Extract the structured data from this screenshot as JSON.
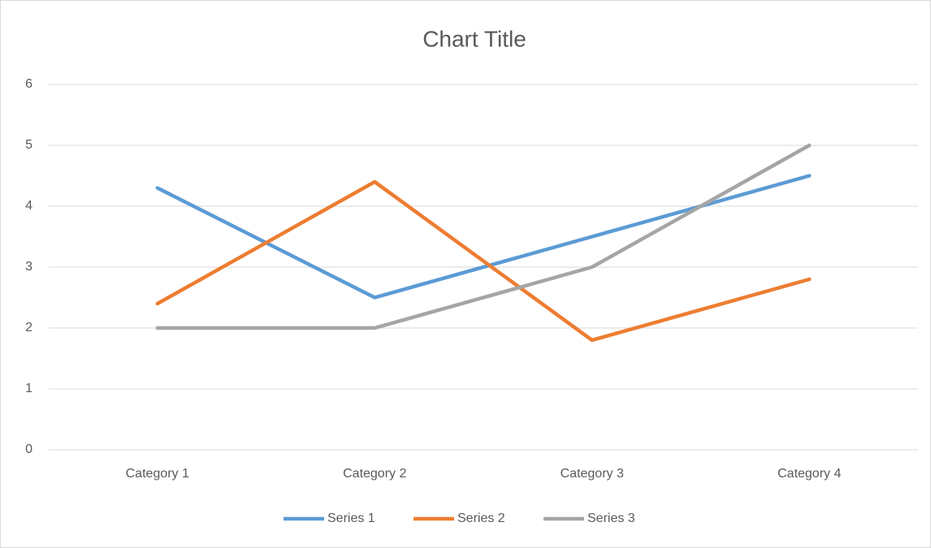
{
  "chart_data": {
    "type": "line",
    "title": "Chart Title",
    "categories": [
      "Category 1",
      "Category 2",
      "Category 3",
      "Category 4"
    ],
    "series": [
      {
        "name": "Series 1",
        "color": "#5b9bd5",
        "values": [
          4.3,
          2.5,
          3.5,
          4.5
        ]
      },
      {
        "name": "Series 2",
        "color": "#ed7d31",
        "values": [
          2.4,
          4.4,
          1.8,
          2.8
        ]
      },
      {
        "name": "Series 3",
        "color": "#a5a5a5",
        "values": [
          2,
          2,
          3,
          5
        ]
      }
    ],
    "ylim": [
      0,
      6
    ],
    "yticks": [
      0,
      1,
      2,
      3,
      4,
      5,
      6
    ],
    "grid": true,
    "legend": "bottom"
  }
}
